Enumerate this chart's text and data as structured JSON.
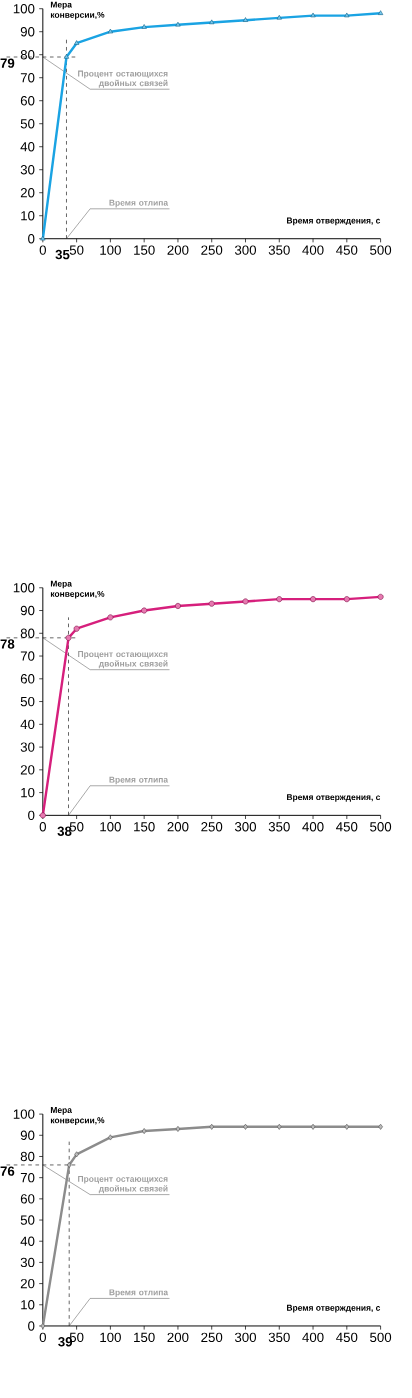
{
  "chart_data": [
    {
      "type": "line",
      "ylabel": "Мера конверсии,%",
      "xlabel": "Время отверждения, с",
      "marker": "triangle",
      "line_style": "solid",
      "x": [
        0,
        35,
        50,
        100,
        150,
        200,
        250,
        300,
        350,
        400,
        450,
        500
      ],
      "series": [
        {
          "color": "#1aa3e3",
          "values": [
            0,
            79,
            85,
            90,
            92,
            93,
            94,
            95,
            96,
            97,
            97,
            98
          ]
        }
      ],
      "xlim": [
        0,
        500
      ],
      "ylim": [
        0,
        100
      ],
      "xticks": [
        0,
        50,
        100,
        150,
        200,
        250,
        300,
        350,
        400,
        450,
        500
      ],
      "yticks": [
        0,
        10,
        20,
        30,
        40,
        50,
        60,
        70,
        80,
        90,
        100
      ],
      "ref_lines": [
        {
          "axis": "x",
          "value": 35,
          "label": "35",
          "line_style": "dashed"
        },
        {
          "axis": "y",
          "value": 79,
          "label": "79",
          "line_style": "dashed"
        }
      ],
      "annotations": [
        {
          "text": "Процент остающихся двойных связей",
          "x": 0,
          "y": 79
        },
        {
          "text": "Время отлипа",
          "x": 35,
          "y": 0
        }
      ]
    },
    {
      "type": "line",
      "ylabel": "Мера конверсии,%",
      "xlabel": "Время отверждения, с",
      "marker": "circle",
      "line_style": "solid",
      "x": [
        0,
        38,
        50,
        100,
        150,
        200,
        250,
        300,
        350,
        400,
        450,
        500
      ],
      "series": [
        {
          "color": "#d61f7c",
          "values": [
            0,
            78,
            82,
            87,
            90,
            92,
            93,
            94,
            95,
            95,
            95,
            96
          ]
        }
      ],
      "xlim": [
        0,
        500
      ],
      "ylim": [
        0,
        100
      ],
      "xticks": [
        0,
        50,
        100,
        150,
        200,
        250,
        300,
        350,
        400,
        450,
        500
      ],
      "yticks": [
        0,
        10,
        20,
        30,
        40,
        50,
        60,
        70,
        80,
        90,
        100
      ],
      "ref_lines": [
        {
          "axis": "x",
          "value": 38,
          "label": "38",
          "line_style": "dashed"
        },
        {
          "axis": "y",
          "value": 78,
          "label": "78",
          "line_style": "dashed"
        }
      ],
      "annotations": [
        {
          "text": "Процент остающихся двойных связей",
          "x": 0,
          "y": 78
        },
        {
          "text": "Время отлипа",
          "x": 38,
          "y": 0
        }
      ]
    },
    {
      "type": "line",
      "ylabel": "Мера конверсии,%",
      "xlabel": "Время отверждения, с",
      "marker": "diamond",
      "line_style": "solid",
      "x": [
        0,
        39,
        50,
        100,
        150,
        200,
        250,
        300,
        350,
        400,
        450,
        500
      ],
      "series": [
        {
          "color": "#8c8c8c",
          "values": [
            0,
            76,
            81,
            89,
            92,
            93,
            94,
            94,
            94,
            94,
            94,
            94
          ]
        }
      ],
      "xlim": [
        0,
        500
      ],
      "ylim": [
        0,
        100
      ],
      "xticks": [
        0,
        50,
        100,
        150,
        200,
        250,
        300,
        350,
        400,
        450,
        500
      ],
      "yticks": [
        0,
        10,
        20,
        30,
        40,
        50,
        60,
        70,
        80,
        90,
        100
      ],
      "ref_lines": [
        {
          "axis": "x",
          "value": 39,
          "label": "39",
          "line_style": "dashed"
        },
        {
          "axis": "y",
          "value": 76,
          "label": "76",
          "line_style": "dashed"
        }
      ],
      "annotations": [
        {
          "text": "Процент остающихся двойных связей",
          "x": 0,
          "y": 76
        },
        {
          "text": "Время отлипа",
          "x": 39,
          "y": 0
        }
      ]
    }
  ]
}
